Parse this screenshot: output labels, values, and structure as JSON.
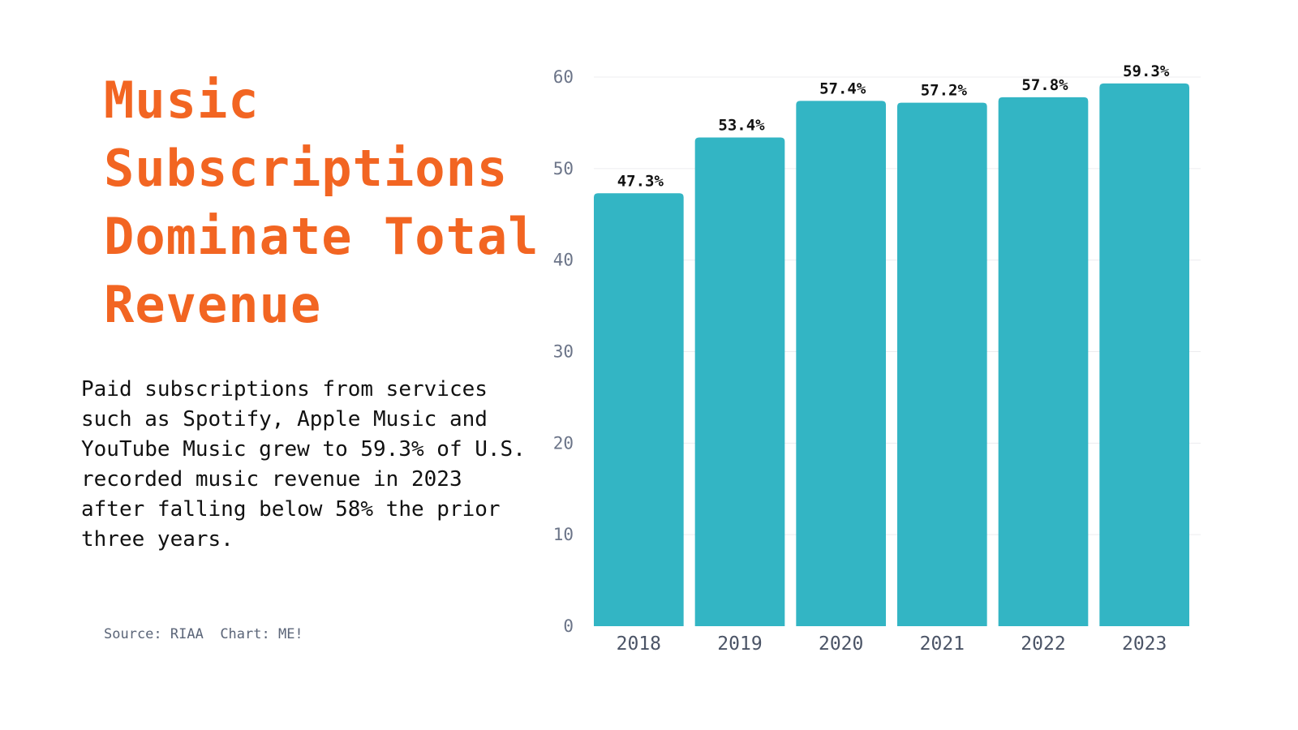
{
  "title": {
    "lines": [
      "Music",
      "Subscriptions",
      "Dominate Total",
      "Revenue"
    ],
    "color": "#f26522"
  },
  "description": "Paid subscriptions from services\nsuch as Spotify, Apple Music and\nYouTube Music grew to 59.3% of U.S.\nrecorded music revenue in 2023\nafter falling below 58% the prior\nthree years.",
  "source": {
    "source_text": "Source: RIAA",
    "chart_text": "Chart: ME!"
  },
  "chart_data": {
    "type": "bar",
    "categories": [
      "2018",
      "2019",
      "2020",
      "2021",
      "2022",
      "2023"
    ],
    "values": [
      47.3,
      53.4,
      57.4,
      57.2,
      57.8,
      59.3
    ],
    "value_labels": [
      "47.3%",
      "53.4%",
      "57.4%",
      "57.2%",
      "57.8%",
      "59.3%"
    ],
    "title": "",
    "xlabel": "",
    "ylabel": "",
    "ylim": [
      0,
      60
    ],
    "yticks": [
      0,
      10,
      20,
      30,
      40,
      50,
      60
    ],
    "grid": true,
    "bar_color": "#33b5c4"
  }
}
